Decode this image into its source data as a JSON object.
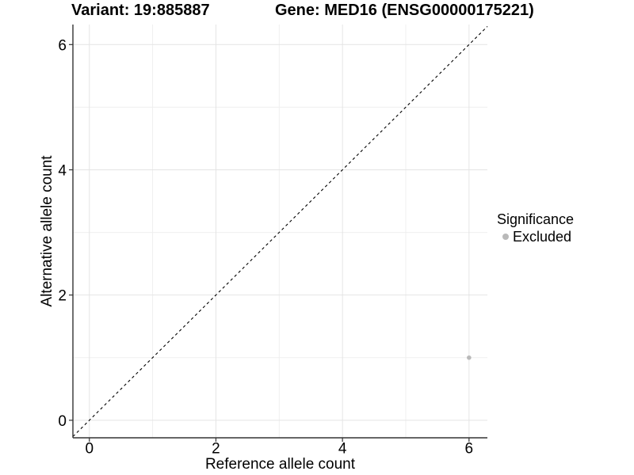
{
  "header": {
    "variant_title": "Variant: 19:885887",
    "gene_title": "Gene: MED16 (ENSG00000175221)"
  },
  "chart_data": {
    "type": "scatter",
    "title": "Variant: 19:885887  Gene: MED16 (ENSG00000175221)",
    "xlabel": "Reference allele count",
    "ylabel": "Alternative allele count",
    "xlim": [
      -0.26,
      6.29
    ],
    "ylim": [
      -0.28,
      6.32
    ],
    "x_ticks": [
      0,
      2,
      4,
      6
    ],
    "y_ticks": [
      0,
      2,
      4,
      6
    ],
    "x_minor_ticks": [
      1,
      3,
      5
    ],
    "y_minor_ticks": [
      1,
      3,
      5
    ],
    "grid": true,
    "series": [
      {
        "name": "Excluded",
        "points": [
          [
            6,
            1
          ]
        ],
        "color": "#b9b9b9"
      }
    ],
    "reference_line": {
      "slope": 1,
      "intercept": 0,
      "style": "dashed",
      "color": "#000000"
    },
    "legend": {
      "title": "Significance",
      "position": "right",
      "entries": [
        {
          "label": "Excluded",
          "color": "#b9b9b9"
        }
      ]
    },
    "colors": {
      "background": "#ffffff",
      "grid_major": "#e4e4e4",
      "grid_minor": "#efefef",
      "axis": "#333333",
      "tick": "#333333",
      "text": "#000000",
      "point": "#b9b9b9"
    }
  }
}
